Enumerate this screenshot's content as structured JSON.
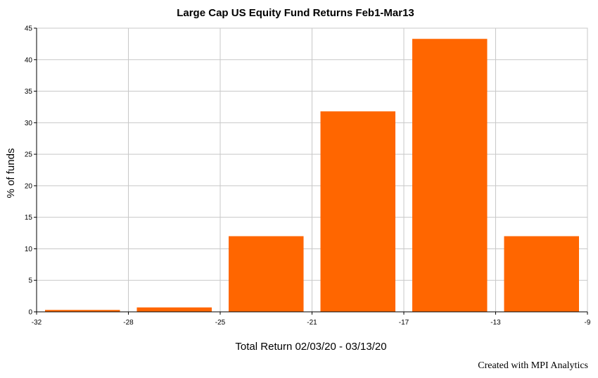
{
  "chart_data": {
    "type": "bar",
    "title": "Large Cap US Equity Fund Returns Feb1-Mar13",
    "xlabel": "Total Return 02/03/20 - 03/13/20",
    "ylabel": "% of funds",
    "x_ticks": [
      "-32",
      "-28",
      "-25",
      "-21",
      "-17",
      "-13",
      "-9"
    ],
    "y_ticks": [
      "0",
      "5",
      "10",
      "15",
      "20",
      "25",
      "30",
      "35",
      "40",
      "45"
    ],
    "ylim": [
      0,
      45
    ],
    "grid": true,
    "bar_color": "#ff6600",
    "bins": [
      {
        "from": "-32",
        "to": "-28",
        "value": 0.3
      },
      {
        "from": "-28",
        "to": "-25",
        "value": 0.7
      },
      {
        "from": "-25",
        "to": "-21",
        "value": 12.0
      },
      {
        "from": "-21",
        "to": "-17",
        "value": 31.8
      },
      {
        "from": "-17",
        "to": "-13",
        "value": 43.3
      },
      {
        "from": "-13",
        "to": "-9",
        "value": 12.0
      }
    ]
  },
  "footer": {
    "credit": "Created with MPI Analytics"
  }
}
